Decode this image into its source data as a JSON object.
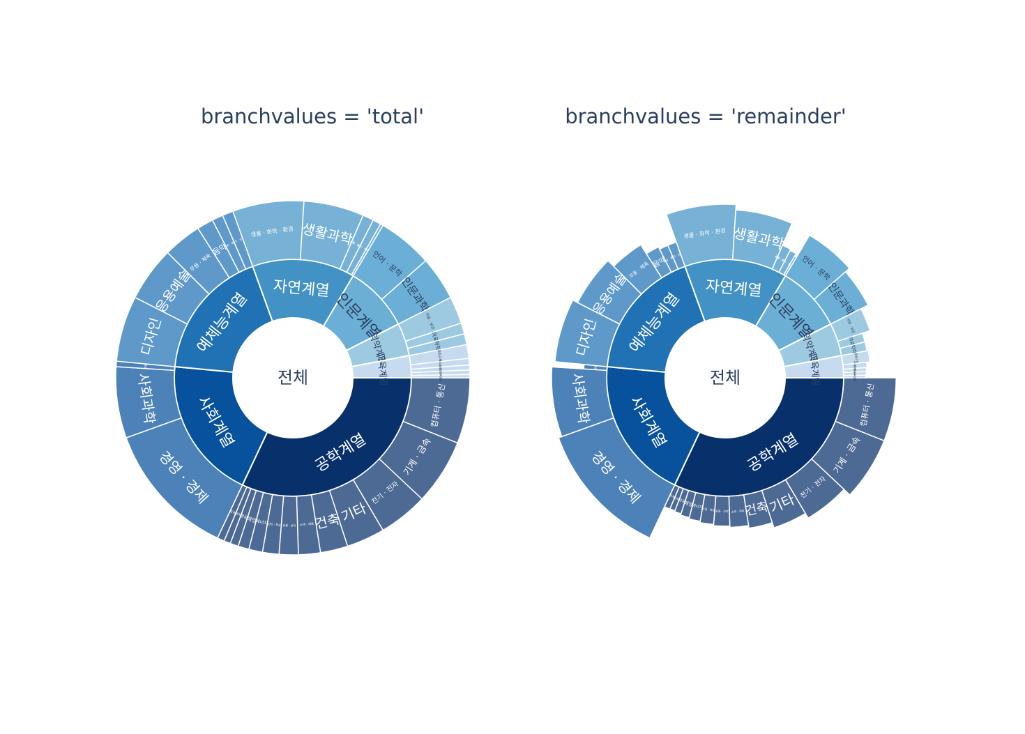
{
  "chart_data": [
    {
      "type": "sunburst",
      "title": "branchvalues = 'total'",
      "branchvalues": "total",
      "root": "전체",
      "children": [
        {
          "label": "공학계열",
          "value": 64,
          "color": "#08306b",
          "children": [
            {
              "label": "컴퓨터 · 통신",
              "value": 12
            },
            {
              "label": "기계 · 금속",
              "value": 12
            },
            {
              "label": "전기 · 전자",
              "value": 9
            },
            {
              "label": "기타",
              "value": 7
            },
            {
              "label": "건축",
              "value": 5
            },
            {
              "label": "소재 · 재료",
              "value": 4
            },
            {
              "label": "응용 · 공학",
              "value": 3.5
            },
            {
              "label": "산업 · 화공",
              "value": 3
            },
            {
              "label": "에너지",
              "value": 2.5
            },
            {
              "label": "해양",
              "value": 2
            },
            {
              "label": "항공",
              "value": 1.5
            },
            {
              "label": "광학",
              "value": 1.2
            },
            {
              "label": "토목",
              "value": 1.3
            }
          ]
        },
        {
          "label": "사회계열",
          "value": 39,
          "color": "#08519c",
          "children": [
            {
              "label": "경영 · 경제",
              "value": 25
            },
            {
              "label": "사회과학",
              "value": 13
            },
            {
              "label": "법률",
              "value": 1
            }
          ]
        },
        {
          "label": "예체능계열",
          "value": 36,
          "color": "#2171b5",
          "children": [
            {
              "label": "디자인",
              "value": 12
            },
            {
              "label": "응용예술",
              "value": 10
            },
            {
              "label": "무용 · 체육",
              "value": 7
            },
            {
              "label": "음악",
              "value": 3
            },
            {
              "label": "미술 · 조형",
              "value": 2
            },
            {
              "label": "연극 · 영화",
              "value": 2
            }
          ]
        },
        {
          "label": "자연계열",
          "value": 28,
          "color": "#4292c6",
          "children": [
            {
              "label": "생물 · 화학 · 환경",
              "value": 13
            },
            {
              "label": "생활과학",
              "value": 11
            },
            {
              "label": "농림 · 수산",
              "value": 2
            },
            {
              "label": "수학 · 물리 · 천문 · 지리",
              "value": 1.5
            },
            {
              "label": "기타",
              "value": 0.5
            }
          ]
        },
        {
          "label": "인문계열",
          "value": 18,
          "color": "#6baed6",
          "children": [
            {
              "label": "언어 · 문학",
              "value": 10
            },
            {
              "label": "인문과학",
              "value": 8
            }
          ]
        },
        {
          "label": "의약계열",
          "value": 9,
          "color": "#9ecae1",
          "children": [
            {
              "label": "치료 · 보건",
              "value": 5
            },
            {
              "label": "의료",
              "value": 2
            },
            {
              "label": "약학",
              "value": 2
            }
          ]
        },
        {
          "label": "교육계열",
          "value": 6,
          "color": "#c6dbef",
          "children": [
            {
              "label": "중등교육",
              "value": 2.5
            },
            {
              "label": "유아교육",
              "value": 1.2
            },
            {
              "label": "초등교육",
              "value": 0.9
            },
            {
              "label": "특수교육",
              "value": 0.8
            },
            {
              "label": "교육일반",
              "value": 0.6
            }
          ]
        }
      ]
    },
    {
      "type": "sunburst",
      "title": "branchvalues = 'remainder'",
      "branchvalues": "remainder",
      "root": "전체",
      "children": [
        {
          "label": "공학계열",
          "value": 64,
          "color": "#08306b",
          "children": [
            {
              "label": "컴퓨터 · 통신",
              "value": 12
            },
            {
              "label": "기계 · 금속",
              "value": 12
            },
            {
              "label": "전기 · 전자",
              "value": 9
            },
            {
              "label": "기타",
              "value": 7
            },
            {
              "label": "건축",
              "value": 5
            },
            {
              "label": "소재 · 재료",
              "value": 4
            },
            {
              "label": "응용 · 공학",
              "value": 3.5
            },
            {
              "label": "산업 · 화공",
              "value": 3
            },
            {
              "label": "에너지",
              "value": 2.5
            },
            {
              "label": "해양",
              "value": 2
            },
            {
              "label": "항공",
              "value": 1.5
            },
            {
              "label": "광학",
              "value": 1.2
            },
            {
              "label": "토목",
              "value": 1.3
            }
          ]
        },
        {
          "label": "사회계열",
          "value": 39,
          "color": "#08519c",
          "children": [
            {
              "label": "경영 · 경제",
              "value": 25
            },
            {
              "label": "사회과학",
              "value": 13
            },
            {
              "label": "법률",
              "value": 1
            }
          ]
        },
        {
          "label": "예체능계열",
          "value": 36,
          "color": "#2171b5",
          "children": [
            {
              "label": "디자인",
              "value": 12
            },
            {
              "label": "응용예술",
              "value": 10
            },
            {
              "label": "무용 · 체육",
              "value": 7
            },
            {
              "label": "음악",
              "value": 3
            },
            {
              "label": "미술 · 조형",
              "value": 2
            },
            {
              "label": "연극 · 영화",
              "value": 2
            }
          ]
        },
        {
          "label": "자연계열",
          "value": 28,
          "color": "#4292c6",
          "children": [
            {
              "label": "생물 · 화학 · 환경",
              "value": 13
            },
            {
              "label": "생활과학",
              "value": 11
            },
            {
              "label": "농림 · 수산",
              "value": 2
            },
            {
              "label": "수학 · 물리 · 천문 · 지리",
              "value": 1.5
            },
            {
              "label": "기타",
              "value": 0.5
            }
          ]
        },
        {
          "label": "인문계열",
          "value": 18,
          "color": "#6baed6",
          "children": [
            {
              "label": "언어 · 문학",
              "value": 10
            },
            {
              "label": "인문과학",
              "value": 8
            }
          ]
        },
        {
          "label": "의약계열",
          "value": 9,
          "color": "#9ecae1",
          "children": [
            {
              "label": "치료 · 보건",
              "value": 5
            },
            {
              "label": "의료",
              "value": 2
            },
            {
              "label": "약학",
              "value": 2
            }
          ]
        },
        {
          "label": "교육계열",
          "value": 6,
          "color": "#c6dbef",
          "children": [
            {
              "label": "중등교육",
              "value": 2.5
            },
            {
              "label": "유아교육",
              "value": 1.2
            },
            {
              "label": "초등교육",
              "value": 0.9
            },
            {
              "label": "특수교육",
              "value": 0.8
            },
            {
              "label": "교육일반",
              "value": 0.6
            }
          ]
        }
      ]
    }
  ]
}
